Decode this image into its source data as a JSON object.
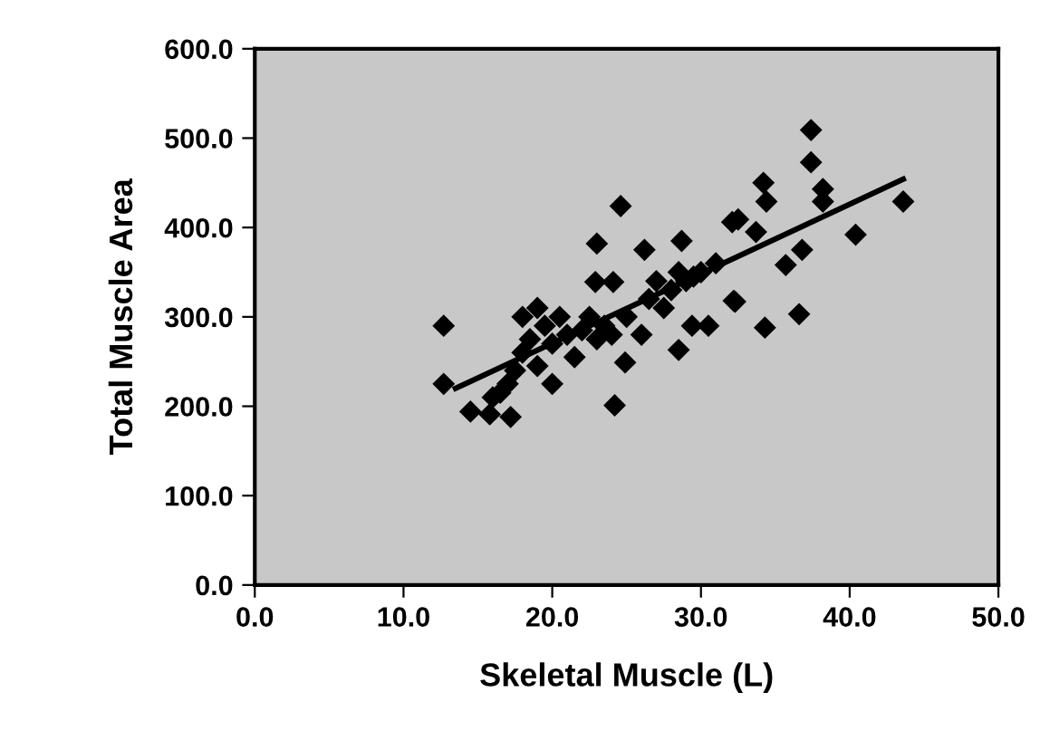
{
  "chart_data": {
    "type": "scatter",
    "xlabel": "Skeletal Muscle (L)",
    "ylabel": "Total Muscle Area",
    "xlim": [
      0,
      50
    ],
    "xticks": [
      {
        "value": 0,
        "label": "0.0"
      },
      {
        "value": 10,
        "label": "10.0"
      },
      {
        "value": 20,
        "label": "20.0"
      },
      {
        "value": 30,
        "label": "30.0"
      },
      {
        "value": 40,
        "label": "40.0"
      },
      {
        "value": 50,
        "label": "50.0"
      }
    ],
    "ylim": [
      0,
      600
    ],
    "yticks": [
      {
        "value": 0,
        "label": "0.0"
      },
      {
        "value": 100,
        "label": "100.0"
      },
      {
        "value": 200,
        "label": "200.0"
      },
      {
        "value": 300,
        "label": "300.0"
      },
      {
        "value": 400,
        "label": "400.0"
      },
      {
        "value": 500,
        "label": "500.0"
      },
      {
        "value": 600,
        "label": "600.0"
      }
    ],
    "grid": false,
    "legend": false,
    "marker": "diamond",
    "series": [
      {
        "color": "#000000",
        "x": [
          24.6,
          23.0,
          26.2,
          28.7,
          32.1,
          22.9,
          24.1,
          12.7,
          32.2,
          29.4,
          28.5,
          24.9,
          24.2,
          12.7,
          14.5,
          15.8,
          17.2,
          37.4,
          37.4,
          34.2,
          34.4,
          38.2,
          38.2,
          43.6,
          40.4,
          32.5,
          33.7,
          36.8,
          35.7,
          32.3,
          34.3,
          36.6,
          16.5,
          17.5,
          18.0,
          18.5,
          18.0,
          19.0,
          19.5,
          20.0,
          20.5,
          21.0,
          21.5,
          19.0,
          20.0,
          22.0,
          23.0,
          23.5,
          24.0,
          25.0,
          26.0,
          26.5,
          27.0,
          27.5,
          28.0,
          28.5,
          29.0,
          29.5,
          30.0,
          30.5,
          31.0,
          22.5,
          17.0,
          16.0
        ],
        "values": [
          424,
          382,
          375,
          385,
          406,
          339,
          339,
          290,
          318,
          290,
          263,
          249,
          201,
          225,
          194,
          191,
          188,
          509,
          473,
          450,
          429,
          443,
          429,
          429,
          392,
          409,
          395,
          375,
          358,
          317,
          288,
          303,
          215,
          240,
          260,
          275,
          300,
          310,
          290,
          270,
          300,
          280,
          255,
          245,
          225,
          285,
          275,
          290,
          280,
          300,
          280,
          320,
          340,
          310,
          330,
          350,
          340,
          345,
          350,
          290,
          360,
          300,
          225,
          210
        ]
      },
      {
        "type": "line",
        "color": "#000000",
        "marker": "none",
        "x": [
          13.5,
          43.6
        ],
        "values": [
          220,
          454
        ]
      }
    ]
  }
}
